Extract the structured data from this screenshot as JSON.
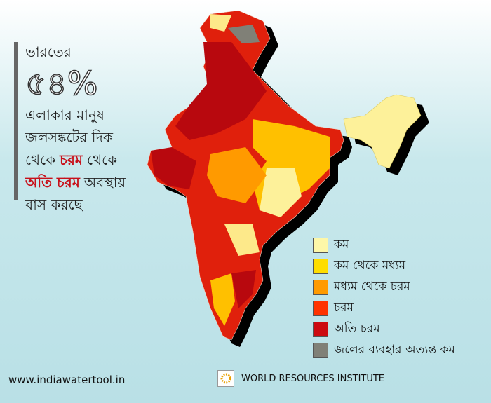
{
  "headline": {
    "lines": [
      [
        "ভারতের"
      ],
      [
        "৫৪%"
      ],
      [
        "এলাকার মানুষ"
      ],
      [
        "জলসঙ্কটের দিক"
      ],
      [
        "থেকে",
        "চরম",
        "থেকে"
      ],
      [
        "অতি চরম",
        "অবস্থায়"
      ],
      [
        "বাস করছে"
      ]
    ]
  },
  "legend": {
    "items": [
      {
        "label": "কম",
        "color": "#fdf7a8"
      },
      {
        "label": "কম থেকে মধ্যম",
        "color": "#ffdd00"
      },
      {
        "label": "মধ্যম থেকে চরম",
        "color": "#ff9a00"
      },
      {
        "label": "চরম",
        "color": "#ff3300"
      },
      {
        "label": "অতি চরম",
        "color": "#cc0a10"
      },
      {
        "label": "জলের ব্যবহার অত্যন্ত কম",
        "color": "#808077"
      }
    ]
  },
  "footer": {
    "website": "www.indiawatertool.in",
    "organization": "WORLD RESOURCES INSTITUTE"
  }
}
